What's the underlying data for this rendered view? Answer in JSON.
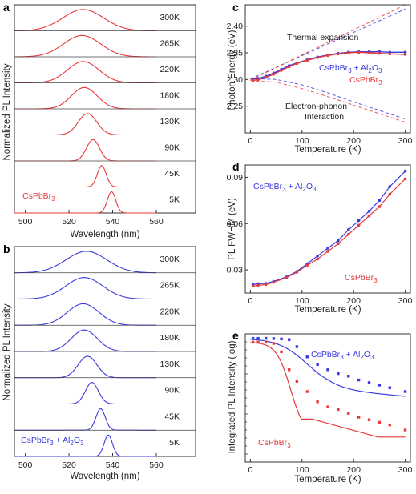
{
  "colors": {
    "red": "#e8393a",
    "blue": "#3a3ae0",
    "axis": "#333333"
  },
  "chart_data": [
    {
      "panel": "a",
      "type": "line",
      "xlabel": "Wavelength (nm)",
      "ylabel": "Normalized PL Intensity",
      "xlim": [
        495,
        578
      ],
      "xticks": [
        500,
        520,
        540,
        560
      ],
      "color": "red",
      "sample_label": "CsPbBr3",
      "series": [
        {
          "name": "300K",
          "peak": 526.5,
          "fwhm": 22
        },
        {
          "name": "265K",
          "peak": 526.0,
          "fwhm": 20
        },
        {
          "name": "220K",
          "peak": 526.5,
          "fwhm": 17
        },
        {
          "name": "180K",
          "peak": 527.0,
          "fwhm": 14
        },
        {
          "name": "130K",
          "peak": 528.5,
          "fwhm": 10
        },
        {
          "name": "90K",
          "peak": 531.0,
          "fwhm": 7
        },
        {
          "name": "45K",
          "peak": 535.0,
          "fwhm": 4.8
        },
        {
          "name": "5K",
          "peak": 539.5,
          "fwhm": 4.5
        }
      ]
    },
    {
      "panel": "b",
      "type": "line",
      "xlabel": "Wavelength (nm)",
      "ylabel": "Normalized PL Intensity",
      "xlim": [
        495,
        578
      ],
      "xticks": [
        500,
        520,
        540,
        560
      ],
      "color": "blue",
      "sample_label": "CsPbBr3 + Al2O3",
      "series": [
        {
          "name": "300K",
          "peak": 528.0,
          "fwhm": 22
        },
        {
          "name": "265K",
          "peak": 527.0,
          "fwhm": 20
        },
        {
          "name": "220K",
          "peak": 526.5,
          "fwhm": 17
        },
        {
          "name": "180K",
          "peak": 527.0,
          "fwhm": 14
        },
        {
          "name": "130K",
          "peak": 528.5,
          "fwhm": 10
        },
        {
          "name": "90K",
          "peak": 530.5,
          "fwhm": 7
        },
        {
          "name": "45K",
          "peak": 534.5,
          "fwhm": 5
        },
        {
          "name": "5K",
          "peak": 538.0,
          "fwhm": 4.5
        }
      ]
    },
    {
      "panel": "c",
      "type": "line",
      "xlabel": "Temperature (K)",
      "ylabel": "Photon Energy (eV)",
      "xlim": [
        -10,
        310
      ],
      "ylim": [
        2.2,
        2.44
      ],
      "xticks": [
        0,
        100,
        200,
        300
      ],
      "yticks": [
        2.25,
        2.3,
        2.35,
        2.4
      ],
      "annotations": [
        "Thermal expansion",
        "Electron-phonon",
        "Interaction"
      ],
      "labels": {
        "blue": "CsPbBr3 + Al2O3",
        "red": "CsPbBr3"
      },
      "series": [
        {
          "name": "CsPbBr3 + Al2O3",
          "color": "blue",
          "x": [
            5,
            15,
            30,
            45,
            60,
            75,
            90,
            110,
            130,
            150,
            170,
            190,
            210,
            230,
            250,
            270,
            300
          ],
          "y": [
            2.301,
            2.302,
            2.306,
            2.312,
            2.319,
            2.326,
            2.331,
            2.337,
            2.342,
            2.346,
            2.349,
            2.351,
            2.352,
            2.352,
            2.352,
            2.351,
            2.351
          ]
        },
        {
          "name": "CsPbBr3",
          "color": "red",
          "x": [
            5,
            15,
            30,
            45,
            60,
            75,
            90,
            110,
            130,
            150,
            170,
            190,
            210,
            230,
            250,
            270,
            300
          ],
          "y": [
            2.298,
            2.3,
            2.304,
            2.31,
            2.317,
            2.324,
            2.33,
            2.336,
            2.341,
            2.345,
            2.348,
            2.35,
            2.351,
            2.35,
            2.349,
            2.348,
            2.347
          ]
        },
        {
          "name": "Thermal expansion (blue)",
          "color": "blue",
          "style": "dashed",
          "x": [
            0,
            300
          ],
          "y": [
            2.301,
            2.432
          ]
        },
        {
          "name": "Thermal expansion (red)",
          "color": "red",
          "style": "dashed",
          "x": [
            0,
            300
          ],
          "y": [
            2.299,
            2.44
          ]
        },
        {
          "name": "Electron-phonon (blue)",
          "color": "blue",
          "style": "dashed",
          "x": [
            0,
            50,
            100,
            150,
            200,
            250,
            300
          ],
          "y": [
            2.302,
            2.3,
            2.29,
            2.275,
            2.258,
            2.242,
            2.226
          ]
        },
        {
          "name": "Electron-phonon (red)",
          "color": "red",
          "style": "dashed",
          "x": [
            0,
            50,
            100,
            150,
            200,
            250,
            300
          ],
          "y": [
            2.298,
            2.295,
            2.283,
            2.268,
            2.252,
            2.236,
            2.22
          ]
        }
      ]
    },
    {
      "panel": "d",
      "type": "scatter",
      "xlabel": "Temperature (K)",
      "ylabel": "PL FWHM (eV)",
      "xlim": [
        -10,
        310
      ],
      "ylim": [
        0.015,
        0.098
      ],
      "xticks": [
        0,
        100,
        200,
        300
      ],
      "yticks": [
        0.03,
        0.06,
        0.09
      ],
      "labels": {
        "blue": "CsPbBr3 + Al2O3",
        "red": "CsPbBr3"
      },
      "series": [
        {
          "name": "CsPbBr3 + Al2O3",
          "color": "blue",
          "x": [
            5,
            15,
            30,
            45,
            70,
            90,
            110,
            130,
            150,
            170,
            190,
            210,
            230,
            250,
            270,
            300
          ],
          "y": [
            0.0205,
            0.021,
            0.0212,
            0.0225,
            0.0255,
            0.029,
            0.034,
            0.039,
            0.044,
            0.049,
            0.056,
            0.062,
            0.068,
            0.075,
            0.084,
            0.094
          ]
        },
        {
          "name": "CsPbBr3",
          "color": "red",
          "x": [
            5,
            15,
            30,
            45,
            70,
            90,
            110,
            130,
            150,
            170,
            190,
            210,
            230,
            250,
            270,
            300
          ],
          "y": [
            0.0195,
            0.02,
            0.0205,
            0.022,
            0.025,
            0.0285,
            0.033,
            0.037,
            0.042,
            0.047,
            0.053,
            0.059,
            0.065,
            0.071,
            0.079,
            0.089
          ]
        }
      ]
    },
    {
      "panel": "e",
      "type": "scatter",
      "xlabel": "Temperature (K)",
      "ylabel": "Integrated PL Intensity (log)",
      "xlim": [
        -10,
        310
      ],
      "ylim": [
        0,
        1
      ],
      "xticks": [
        0,
        100,
        200,
        300
      ],
      "labels": {
        "blue": "CsPbBr3 + Al2O3",
        "red": "CsPbBr3"
      },
      "series": [
        {
          "name": "CsPbBr3 + Al2O3",
          "color": "blue",
          "x": [
            5,
            15,
            30,
            45,
            60,
            75,
            90,
            110,
            130,
            150,
            170,
            190,
            210,
            230,
            250,
            270,
            300
          ],
          "y": [
            0.965,
            0.965,
            0.965,
            0.963,
            0.96,
            0.955,
            0.9,
            0.82,
            0.76,
            0.72,
            0.69,
            0.67,
            0.64,
            0.62,
            0.6,
            0.58,
            0.55
          ]
        },
        {
          "name": "CsPbBr3",
          "color": "red",
          "x": [
            5,
            15,
            30,
            45,
            60,
            75,
            90,
            110,
            130,
            150,
            170,
            190,
            210,
            230,
            250,
            270,
            300
          ],
          "y": [
            0.935,
            0.935,
            0.935,
            0.925,
            0.86,
            0.72,
            0.63,
            0.55,
            0.47,
            0.43,
            0.41,
            0.38,
            0.35,
            0.33,
            0.31,
            0.29,
            0.25
          ]
        }
      ]
    }
  ]
}
